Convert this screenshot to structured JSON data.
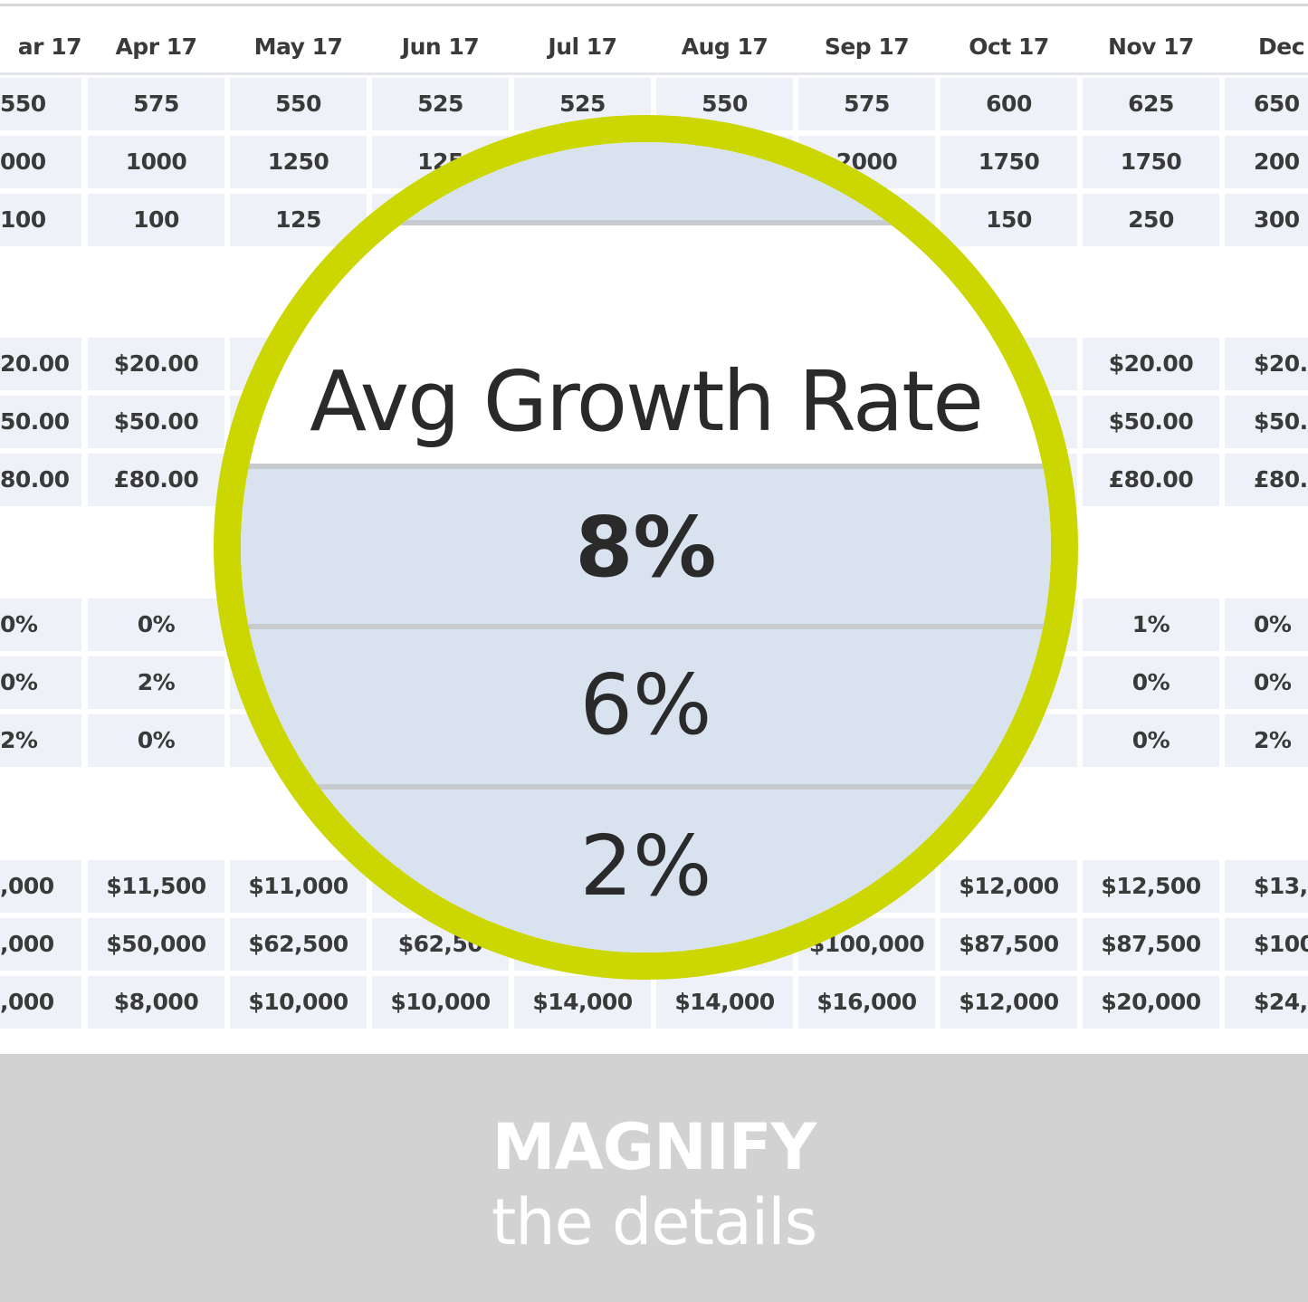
{
  "table": {
    "months": [
      "ar 17",
      "Apr 17",
      "May 17",
      "Jun 17",
      "Jul 17",
      "Aug 17",
      "Sep 17",
      "Oct 17",
      "Nov 17",
      "Dec 1"
    ],
    "groups": [
      [
        [
          "550",
          "575",
          "550",
          "525",
          "525",
          "550",
          "575",
          "600",
          "625",
          "650"
        ],
        [
          "000",
          "1000",
          "1250",
          "125",
          "",
          "",
          "2000",
          "1750",
          "1750",
          "200"
        ],
        [
          "100",
          "100",
          "125",
          "",
          "",
          "",
          "",
          "150",
          "250",
          "300"
        ]
      ],
      [
        [
          "20.00",
          "$20.00",
          "",
          "",
          "",
          "",
          "",
          ")",
          "$20.00",
          "$20.0"
        ],
        [
          "50.00",
          "$50.00",
          "",
          "",
          "",
          "",
          "",
          "",
          "$50.00",
          "$50.0"
        ],
        [
          "80.00",
          "£80.00",
          "",
          "",
          "",
          "",
          "",
          "",
          "£80.00",
          "£80.0"
        ]
      ],
      [
        [
          "0%",
          "0%",
          "",
          "",
          "",
          "",
          "",
          "",
          "1%",
          "0%"
        ],
        [
          "0%",
          "2%",
          "",
          "",
          "",
          "",
          "",
          "",
          "0%",
          "0%"
        ],
        [
          "2%",
          "0%",
          "",
          "",
          "",
          "",
          "",
          "",
          "0%",
          "2%"
        ]
      ],
      [
        [
          ",000",
          "$11,500",
          "$11,000",
          "",
          "",
          "",
          "",
          "$12,000",
          "$12,500",
          "$13,0"
        ],
        [
          ",000",
          "$50,000",
          "$62,500",
          "$62,50",
          "",
          "",
          "$100,000",
          "$87,500",
          "$87,500",
          "$100,0"
        ],
        [
          ",000",
          "$8,000",
          "$10,000",
          "$10,000",
          "$14,000",
          "$14,000",
          "$16,000",
          "$12,000",
          "$20,000",
          "$24,0"
        ]
      ]
    ]
  },
  "magnifier": {
    "title": "Avg Growth Rate",
    "values": [
      "8%",
      "6%",
      "2%"
    ],
    "ring_color": "#ccd600"
  },
  "banner": {
    "title": "MAGNIFY",
    "subtitle": "the details"
  }
}
